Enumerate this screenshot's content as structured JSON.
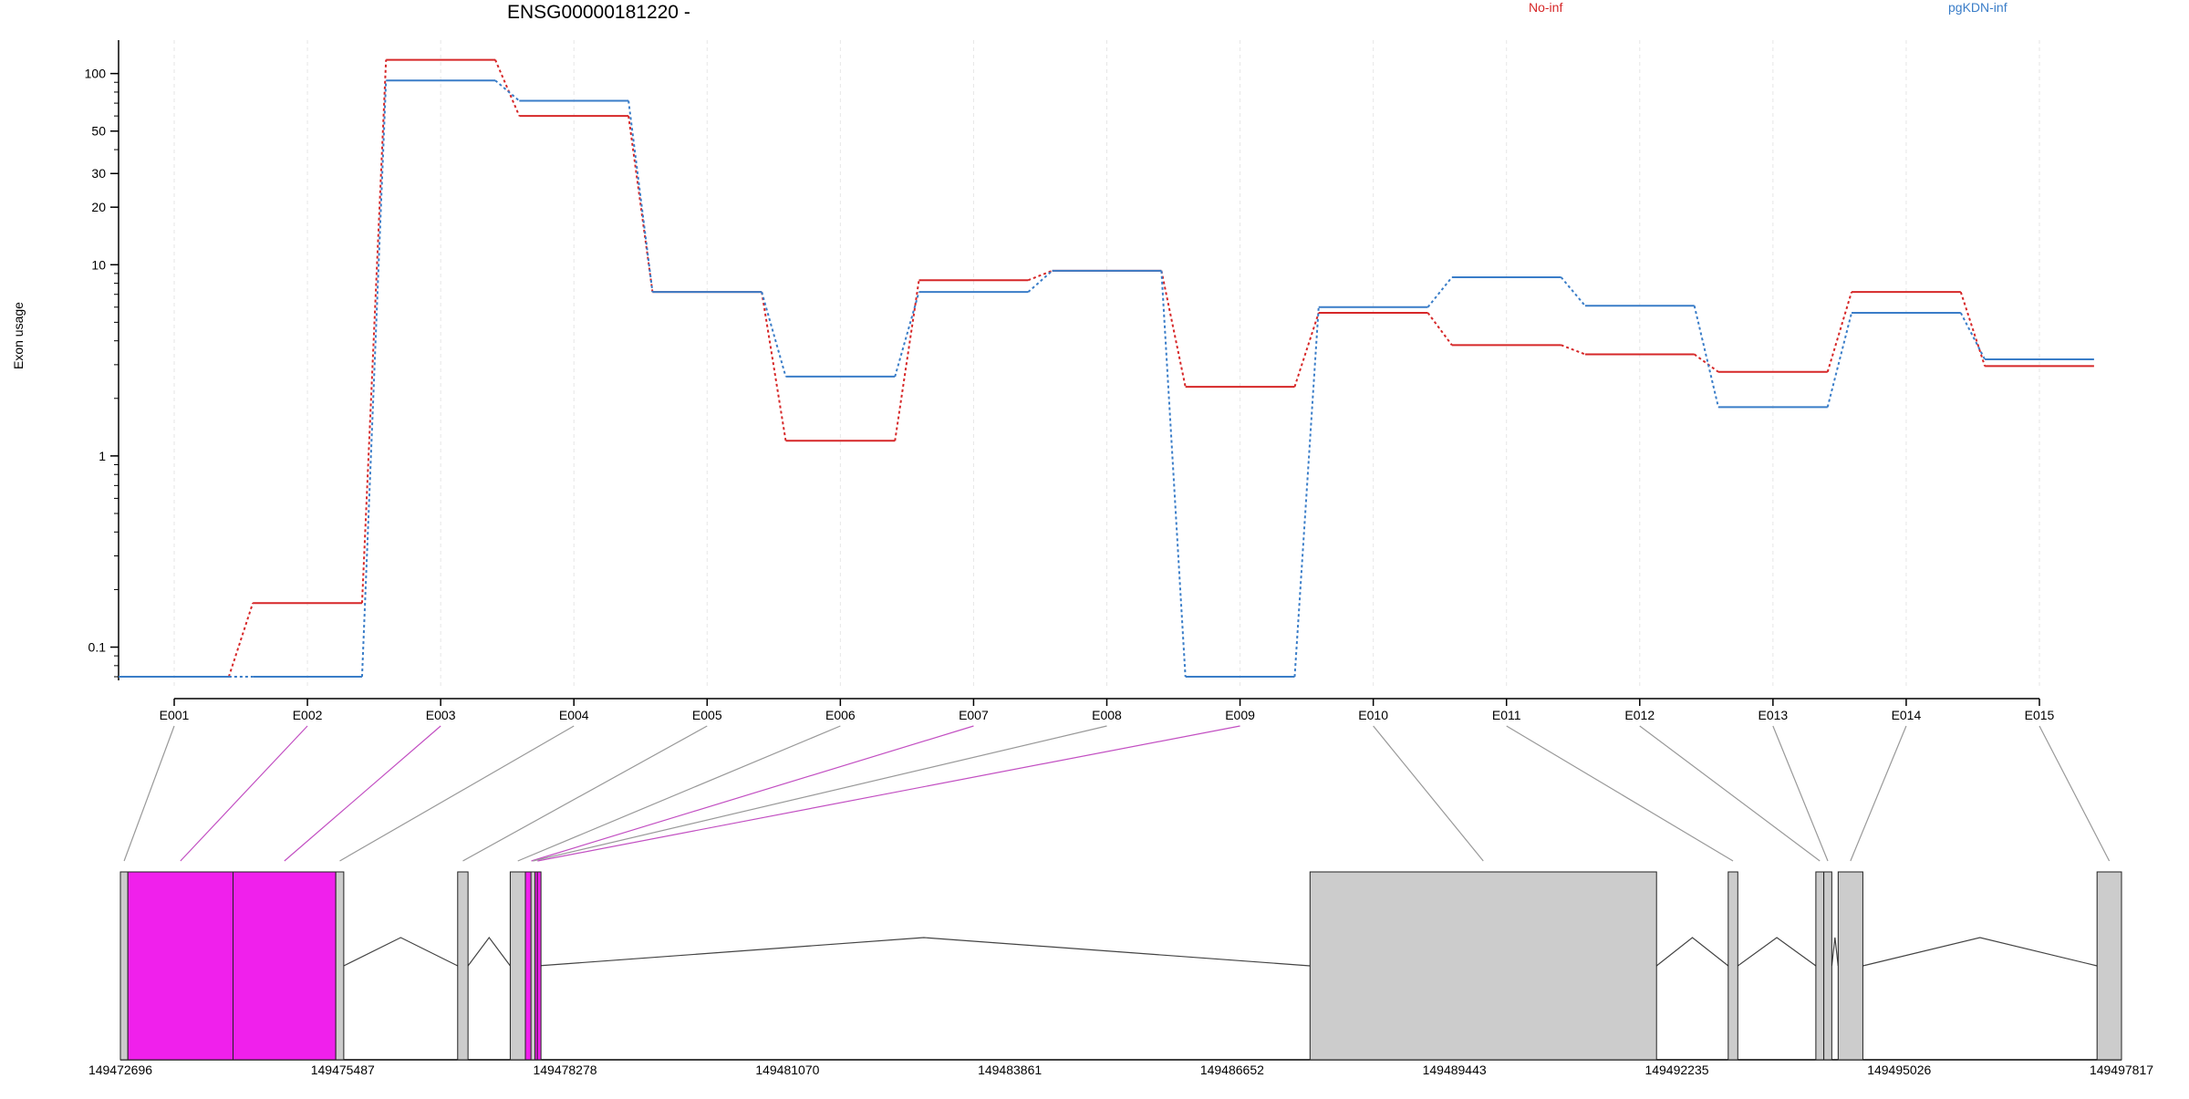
{
  "chart_data": {
    "type": "line",
    "title": "ENSG00000181220 -",
    "ylabel": "Exon usage",
    "y_scale": "log",
    "y_ticks": [
      0.1,
      1,
      10,
      20,
      30,
      50,
      100
    ],
    "y_tick_labels": [
      "0.1",
      "1",
      "10",
      "20",
      "30",
      "50",
      "100"
    ],
    "ylim": [
      0.07,
      140
    ],
    "categories": [
      "E001",
      "E002",
      "E003",
      "E004",
      "E005",
      "E006",
      "E007",
      "E008",
      "E009",
      "E010",
      "E011",
      "E012",
      "E013",
      "E014",
      "E015"
    ],
    "legend_position": "top",
    "series": [
      {
        "name": "No-inf",
        "color": "#d62728",
        "values": [
          0.07,
          0.17,
          118,
          60,
          7.2,
          1.2,
          8.3,
          9.3,
          2.3,
          5.6,
          3.8,
          3.4,
          2.75,
          7.2,
          2.95
        ]
      },
      {
        "name": "pgKDN-inf",
        "color": "#3a7dc8",
        "values": [
          0.07,
          0.07,
          92,
          72,
          7.2,
          2.6,
          7.2,
          9.3,
          0.07,
          6.0,
          8.6,
          6.1,
          1.8,
          5.6,
          3.2
        ]
      }
    ],
    "gene_model": {
      "coordinate_labels": [
        "149472696",
        "149475487",
        "149478278",
        "149481070",
        "149483861",
        "149486652",
        "149489443",
        "149492235",
        "149495026",
        "149497817"
      ],
      "exons": [
        {
          "id": "E001",
          "start": 149472696,
          "end": 149472790,
          "highlight": false
        },
        {
          "id": "E002",
          "start": 149472790,
          "end": 149474110,
          "highlight": true
        },
        {
          "id": "E003",
          "start": 149474110,
          "end": 149475400,
          "highlight": true
        },
        {
          "id": "E004",
          "start": 149475400,
          "end": 149475500,
          "highlight": false
        },
        {
          "id": "E005",
          "start": 149476930,
          "end": 149477060,
          "highlight": false
        },
        {
          "id": "E006",
          "start": 149477590,
          "end": 149477780,
          "highlight": false
        },
        {
          "id": "E007",
          "start": 149477780,
          "end": 149477930,
          "highlight": true
        },
        {
          "id": "E008",
          "start": 149477850,
          "end": 149477900,
          "highlight": false
        },
        {
          "id": "E009",
          "start": 149477930,
          "end": 149477935,
          "highlight": true
        },
        {
          "id": "E010",
          "start": 149487630,
          "end": 149491980,
          "highlight": false
        },
        {
          "id": "E011",
          "start": 149492880,
          "end": 149493000,
          "highlight": false
        },
        {
          "id": "E012",
          "start": 149493980,
          "end": 149494080,
          "highlight": false
        },
        {
          "id": "E013",
          "start": 149494080,
          "end": 149494180,
          "highlight": false
        },
        {
          "id": "E014",
          "start": 149494260,
          "end": 149494570,
          "highlight": false
        },
        {
          "id": "E015",
          "start": 149497510,
          "end": 149497817,
          "highlight": false
        }
      ]
    }
  }
}
